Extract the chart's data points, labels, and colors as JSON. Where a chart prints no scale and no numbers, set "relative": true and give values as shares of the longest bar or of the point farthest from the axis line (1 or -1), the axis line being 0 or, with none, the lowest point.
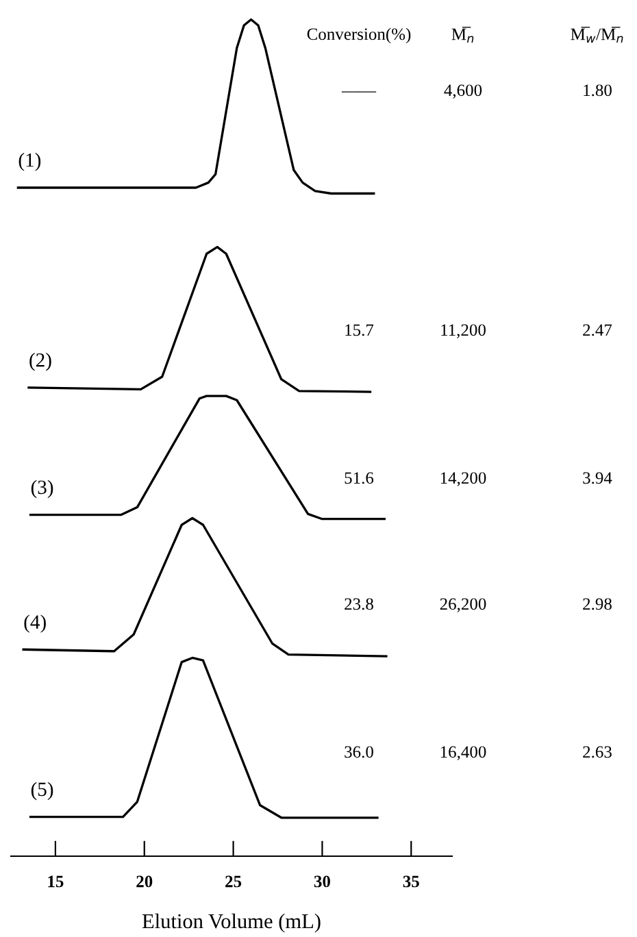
{
  "chart_data": {
    "type": "line",
    "relative": true,
    "xlabel": "Elution Volume (mL)",
    "xlim": [
      12.5,
      37.3
    ],
    "xticks": [
      15,
      20,
      25,
      30,
      35
    ],
    "grid": false,
    "legend": false,
    "marker": "none",
    "line_style": "solid",
    "series": [
      {
        "name": "(1)",
        "color": "#000000",
        "x": [
          12.9,
          22.9,
          23.6,
          24.0,
          25.2,
          25.6,
          26.0,
          26.4,
          26.8,
          28.4,
          28.9,
          29.6,
          30.5,
          32.9
        ],
        "values": [
          0.799,
          0.799,
          0.805,
          0.815,
          0.966,
          0.993,
          1.0,
          0.993,
          0.966,
          0.82,
          0.805,
          0.795,
          0.792,
          0.792
        ]
      },
      {
        "name": "(2)",
        "color": "#000000",
        "x": [
          13.5,
          19.8,
          21.0,
          23.5,
          24.1,
          24.6,
          27.7,
          28.7,
          32.7
        ],
        "values": [
          0.56,
          0.558,
          0.573,
          0.72,
          0.728,
          0.72,
          0.57,
          0.556,
          0.555
        ]
      },
      {
        "name": "(3)",
        "color": "#000000",
        "x": [
          13.6,
          18.7,
          19.6,
          23.1,
          23.5,
          24.6,
          25.2,
          29.2,
          30.0,
          33.5
        ],
        "values": [
          0.408,
          0.408,
          0.417,
          0.547,
          0.55,
          0.55,
          0.545,
          0.409,
          0.403,
          0.403
        ]
      },
      {
        "name": "(4)",
        "color": "#000000",
        "x": [
          13.2,
          18.3,
          19.4,
          22.1,
          22.7,
          23.3,
          27.2,
          28.1,
          33.6
        ],
        "values": [
          0.247,
          0.245,
          0.265,
          0.396,
          0.404,
          0.396,
          0.254,
          0.241,
          0.239
        ]
      },
      {
        "name": "(5)",
        "color": "#000000",
        "x": [
          13.6,
          18.8,
          19.6,
          22.1,
          22.7,
          23.3,
          26.5,
          27.7,
          33.1
        ],
        "values": [
          0.047,
          0.047,
          0.065,
          0.232,
          0.237,
          0.234,
          0.061,
          0.046,
          0.046
        ]
      }
    ],
    "annotations": [
      "Conversion(%)",
      "M̅$_{n}$",
      "M̅$_{w}$/M̅$_{n}$",
      "——",
      "4,600",
      "1.80",
      "15.7",
      "11,200",
      "2.47",
      "51.6",
      "14,200",
      "3.94",
      "23.8",
      "26,200",
      "2.98",
      "36.0",
      "16,400",
      "2.63"
    ]
  }
}
